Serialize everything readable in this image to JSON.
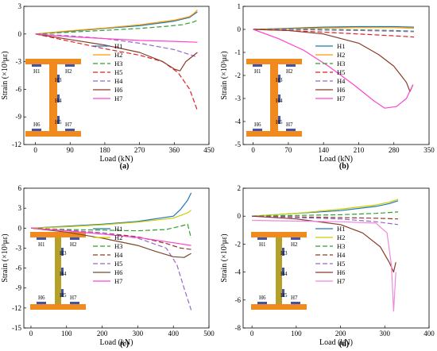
{
  "chart_data": [
    {
      "type": "line",
      "panel_label": "(a)",
      "xlabel": "Load (kN)",
      "ylabel": "Strain (×10³με)",
      "xlim": [
        -30,
        450
      ],
      "ylim": [
        -12,
        3
      ],
      "xticks": [
        "0",
        "90",
        "180",
        "270",
        "360",
        "450"
      ],
      "xtick_values": [
        0,
        90,
        180,
        270,
        360,
        450
      ],
      "yticks": [
        "3",
        "0",
        "-3",
        "-6",
        "-9",
        "-12"
      ],
      "ytick_values": [
        3,
        0,
        -3,
        -6,
        -9,
        -12
      ],
      "legend": [
        "H1",
        "H2",
        "H3",
        "H5",
        "H4",
        "H6",
        "H7"
      ],
      "section_labels": [
        "H1",
        "H2",
        "H3",
        "H4",
        "H5",
        "H6",
        "H7"
      ],
      "series": [
        {
          "name": "H1",
          "color": "#1f77b4",
          "dash": "",
          "x": [
            0,
            90,
            180,
            270,
            360,
            400,
            410,
            420
          ],
          "y": [
            0,
            0.3,
            0.6,
            0.9,
            1.4,
            1.8,
            2.1,
            2.4
          ]
        },
        {
          "name": "H2",
          "color": "#ff9900",
          "dash": "",
          "x": [
            0,
            90,
            180,
            270,
            360,
            400,
            410,
            420
          ],
          "y": [
            0,
            0.35,
            0.65,
            1.0,
            1.5,
            1.9,
            2.2,
            2.6
          ]
        },
        {
          "name": "H3",
          "color": "#2ca02c",
          "dash": "6,3",
          "x": [
            0,
            90,
            180,
            270,
            330,
            380,
            410,
            420
          ],
          "y": [
            0,
            0.2,
            0.4,
            0.6,
            0.8,
            1.0,
            1.3,
            1.5
          ]
        },
        {
          "name": "H5",
          "color": "#dd2222",
          "dash": "6,3",
          "x": [
            0,
            90,
            180,
            270,
            330,
            370,
            400,
            420
          ],
          "y": [
            0,
            -0.8,
            -1.6,
            -2.3,
            -3.0,
            -4.2,
            -6.0,
            -8.3
          ]
        },
        {
          "name": "H4",
          "color": "#9966cc",
          "dash": "6,3",
          "x": [
            0,
            90,
            180,
            270,
            360,
            420
          ],
          "y": [
            0,
            -0.2,
            -0.5,
            -1.0,
            -1.7,
            -2.5
          ]
        },
        {
          "name": "H6",
          "color": "#8b3a2a",
          "dash": "",
          "x": [
            0,
            90,
            180,
            270,
            330,
            360,
            375,
            390,
            420
          ],
          "y": [
            0,
            -0.6,
            -1.2,
            -2.0,
            -3.0,
            -3.8,
            -4.0,
            -3.0,
            -2.0
          ]
        },
        {
          "name": "H7",
          "color": "#ff44cc",
          "dash": "",
          "x": [
            0,
            90,
            180,
            270,
            360,
            420
          ],
          "y": [
            0,
            -0.3,
            -0.5,
            -0.7,
            -0.8,
            -0.9
          ]
        }
      ]
    },
    {
      "type": "line",
      "panel_label": "(b)",
      "xlabel": "Load (kN)",
      "ylabel": "Strain (×10³με)",
      "xlim": [
        -20,
        350
      ],
      "ylim": [
        -5,
        1
      ],
      "xticks": [
        "0",
        "70",
        "140",
        "210",
        "280",
        "350"
      ],
      "xtick_values": [
        0,
        70,
        140,
        210,
        280,
        350
      ],
      "yticks": [
        "1",
        "0",
        "-1",
        "-2",
        "-3",
        "-4",
        "-5"
      ],
      "ytick_values": [
        1,
        0,
        -1,
        -2,
        -3,
        -4,
        -5
      ],
      "legend": [
        "H1",
        "H2",
        "H3",
        "H5",
        "H4",
        "H6",
        "H7"
      ],
      "section_labels": [
        "H1",
        "H2",
        "H3",
        "H4",
        "H5",
        "H6",
        "H7"
      ],
      "series": [
        {
          "name": "H1",
          "color": "#1f77b4",
          "dash": "",
          "x": [
            0,
            70,
            140,
            210,
            280,
            320
          ],
          "y": [
            0,
            0.05,
            0.1,
            0.12,
            0.12,
            0.1
          ]
        },
        {
          "name": "H2",
          "color": "#ff9900",
          "dash": "",
          "x": [
            0,
            70,
            140,
            210,
            280,
            320
          ],
          "y": [
            0,
            0.03,
            0.06,
            0.08,
            0.08,
            0.05
          ]
        },
        {
          "name": "H3",
          "color": "#2ca02c",
          "dash": "6,3",
          "x": [
            0,
            70,
            140,
            210,
            280,
            320
          ],
          "y": [
            0,
            0.02,
            0.0,
            -0.02,
            -0.05,
            -0.08
          ]
        },
        {
          "name": "H5",
          "color": "#dd2222",
          "dash": "6,3",
          "x": [
            0,
            70,
            140,
            210,
            280,
            320
          ],
          "y": [
            0,
            -0.05,
            -0.12,
            -0.2,
            -0.28,
            -0.33
          ]
        },
        {
          "name": "H4",
          "color": "#9966cc",
          "dash": "6,3",
          "x": [
            0,
            70,
            140,
            210,
            280,
            320
          ],
          "y": [
            0,
            0.0,
            -0.03,
            -0.05,
            -0.08,
            -0.1
          ]
        },
        {
          "name": "H6",
          "color": "#8b3a2a",
          "dash": "",
          "x": [
            0,
            70,
            140,
            210,
            250,
            280,
            305,
            312,
            318
          ],
          "y": [
            0,
            -0.05,
            -0.2,
            -0.6,
            -1.1,
            -1.6,
            -2.3,
            -2.7,
            -2.4
          ]
        },
        {
          "name": "H7",
          "color": "#ff44cc",
          "dash": "",
          "x": [
            0,
            50,
            100,
            150,
            200,
            240,
            262,
            285,
            305,
            318
          ],
          "y": [
            0,
            -0.4,
            -0.9,
            -1.6,
            -2.4,
            -3.1,
            -3.42,
            -3.35,
            -3.0,
            -2.4
          ]
        }
      ]
    },
    {
      "type": "line",
      "panel_label": "(c)",
      "xlabel": "Load (kN)",
      "ylabel": "Strain (×10³με)",
      "xlim": [
        -20,
        500
      ],
      "ylim": [
        -15,
        6
      ],
      "xticks": [
        "0",
        "100",
        "200",
        "300",
        "400",
        "500"
      ],
      "xtick_values": [
        0,
        100,
        200,
        300,
        400,
        500
      ],
      "yticks": [
        "6",
        "3",
        "0",
        "-3",
        "-6",
        "-9",
        "-12",
        "-15"
      ],
      "ytick_values": [
        6,
        3,
        0,
        -3,
        -6,
        -9,
        -12,
        -15
      ],
      "legend": [
        "H1",
        "H2",
        "H3",
        "H4",
        "H5",
        "H6",
        "H7"
      ],
      "section_labels": [
        "H1",
        "H2",
        "H3",
        "H4",
        "H5",
        "H6",
        "H7"
      ],
      "series": [
        {
          "name": "H1",
          "color": "#1f77b4",
          "dash": "",
          "x": [
            0,
            100,
            200,
            300,
            400,
            420,
            440,
            450
          ],
          "y": [
            0,
            0.3,
            0.6,
            1.0,
            1.8,
            2.8,
            4.2,
            5.3
          ]
        },
        {
          "name": "H2",
          "color": "#cccc00",
          "dash": "",
          "x": [
            0,
            100,
            200,
            300,
            400,
            440,
            450
          ],
          "y": [
            0,
            0.2,
            0.5,
            0.9,
            1.5,
            2.3,
            2.7
          ]
        },
        {
          "name": "H3",
          "color": "#2ca02c",
          "dash": "6,3",
          "x": [
            0,
            100,
            200,
            300,
            380,
            420,
            440,
            450
          ],
          "y": [
            0,
            -0.2,
            -0.3,
            -0.4,
            -0.2,
            0.3,
            0.6,
            -1.5
          ]
        },
        {
          "name": "H4",
          "color": "#8b3a2a",
          "dash": "6,3",
          "x": [
            0,
            100,
            200,
            300,
            380,
            420,
            450
          ],
          "y": [
            0,
            -0.3,
            -0.7,
            -1.3,
            -2.3,
            -3.0,
            -3.2
          ]
        },
        {
          "name": "H5",
          "color": "#9966cc",
          "dash": "6,3",
          "x": [
            0,
            100,
            200,
            300,
            380,
            410,
            430,
            450
          ],
          "y": [
            0,
            -0.3,
            -0.7,
            -1.5,
            -3.0,
            -5.5,
            -9.0,
            -12.3
          ]
        },
        {
          "name": "H6",
          "color": "#7a4a2a",
          "dash": "",
          "x": [
            0,
            100,
            200,
            300,
            350,
            400,
            430,
            450
          ],
          "y": [
            0,
            -0.6,
            -1.5,
            -2.6,
            -3.5,
            -4.3,
            -4.4,
            -3.8
          ]
        },
        {
          "name": "H7",
          "color": "#ff44cc",
          "dash": "",
          "x": [
            0,
            100,
            200,
            300,
            400,
            450
          ],
          "y": [
            0,
            -0.4,
            -0.9,
            -1.4,
            -2.2,
            -2.6
          ]
        }
      ]
    },
    {
      "type": "line",
      "panel_label": "(d)",
      "xlabel": "Load (kN)",
      "ylabel": "Strain (×10³με)",
      "xlim": [
        -20,
        400
      ],
      "ylim": [
        -8,
        2
      ],
      "xticks": [
        "0",
        "100",
        "200",
        "300",
        "400"
      ],
      "xtick_values": [
        0,
        100,
        200,
        300,
        400
      ],
      "yticks": [
        "2",
        "0",
        "-2",
        "-4",
        "-6",
        "-8"
      ],
      "ytick_values": [
        2,
        0,
        -2,
        -4,
        -6,
        -8
      ],
      "legend": [
        "H1",
        "H2",
        "H3",
        "H4",
        "H5",
        "H6",
        "H7"
      ],
      "section_labels": [
        "H1",
        "H2",
        "H3",
        "H4",
        "H5",
        "H6",
        "H7"
      ],
      "series": [
        {
          "name": "H1",
          "color": "#1f77b4",
          "dash": "",
          "x": [
            0,
            100,
            200,
            280,
            310,
            330
          ],
          "y": [
            0,
            0.2,
            0.4,
            0.7,
            0.9,
            1.1
          ]
        },
        {
          "name": "H2",
          "color": "#cccc00",
          "dash": "",
          "x": [
            0,
            100,
            200,
            280,
            310,
            330
          ],
          "y": [
            0,
            0.2,
            0.5,
            0.8,
            1.0,
            1.2
          ]
        },
        {
          "name": "H3",
          "color": "#2ca02c",
          "dash": "6,3",
          "x": [
            0,
            100,
            200,
            280,
            330
          ],
          "y": [
            0,
            0.05,
            0.1,
            0.2,
            0.3
          ]
        },
        {
          "name": "H4",
          "color": "#8b3a2a",
          "dash": "6,3",
          "x": [
            0,
            100,
            200,
            280,
            330
          ],
          "y": [
            0,
            -0.05,
            -0.1,
            -0.15,
            -0.2
          ]
        },
        {
          "name": "H5",
          "color": "#9966cc",
          "dash": "6,3",
          "x": [
            0,
            100,
            200,
            280,
            330
          ],
          "y": [
            0,
            -0.1,
            -0.2,
            -0.4,
            -0.6
          ]
        },
        {
          "name": "H6",
          "color": "#8b3a2a",
          "dash": "",
          "x": [
            0,
            100,
            200,
            250,
            290,
            310,
            320,
            325
          ],
          "y": [
            0,
            -0.2,
            -0.6,
            -1.2,
            -2.2,
            -3.3,
            -4.0,
            -3.3
          ]
        },
        {
          "name": "H7",
          "color": "#ee88dd",
          "dash": "",
          "x": [
            0,
            100,
            200,
            280,
            305,
            315,
            320,
            325
          ],
          "y": [
            -0.3,
            -0.35,
            -0.4,
            -0.5,
            -1.2,
            -3.5,
            -6.8,
            -4.0
          ]
        }
      ]
    }
  ]
}
